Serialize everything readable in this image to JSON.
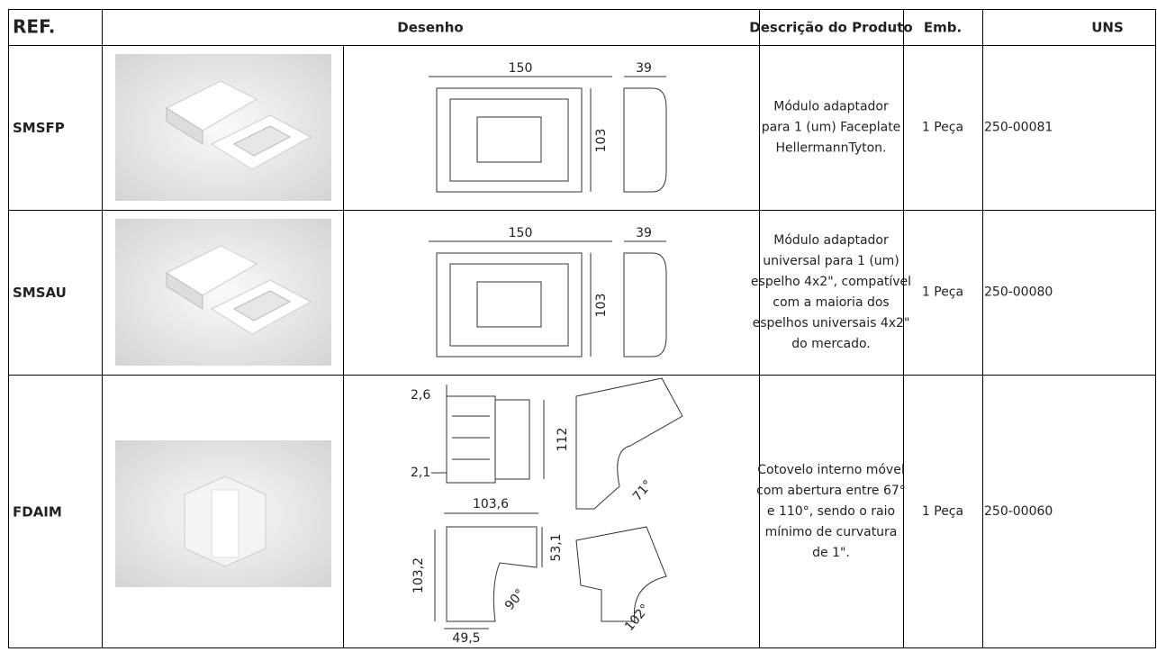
{
  "table": {
    "header": [
      "REF.",
      "Desenho",
      "Descrição do Produto",
      "Emb.",
      "UNS"
    ],
    "rows": [
      {
        "ref": "SMSFP",
        "dimensions": [
          "150",
          "39",
          "103"
        ],
        "description": [
          "Módulo adaptador",
          "para 1 (um) Faceplate",
          "HellermannTyton."
        ],
        "emb": "1 Peça",
        "uns": "250-00081"
      },
      {
        "ref": "SMSAU",
        "dimensions": [
          "150",
          "39",
          "103"
        ],
        "description": [
          "Módulo adaptador",
          "universal para 1 (um)",
          "espelho 4x2\", compatível",
          "com a maioria dos",
          "espelhos universais 4x2\"",
          "do mercado."
        ],
        "emb": "1 Peça",
        "uns": "250-00080"
      },
      {
        "ref": "FDAIM",
        "dimensions": [
          "2,6",
          "2,1",
          "112",
          "71°",
          "103,6",
          "103,2",
          "53,1",
          "90°",
          "49,5",
          "102°"
        ],
        "description": [
          "Cotovelo interno móvel",
          "com abertura entre 67°",
          "e 110°, sendo o raio",
          "mínimo de curvatura",
          "de 1\"."
        ],
        "emb": "1 Peça",
        "uns": "250-00060"
      }
    ]
  }
}
